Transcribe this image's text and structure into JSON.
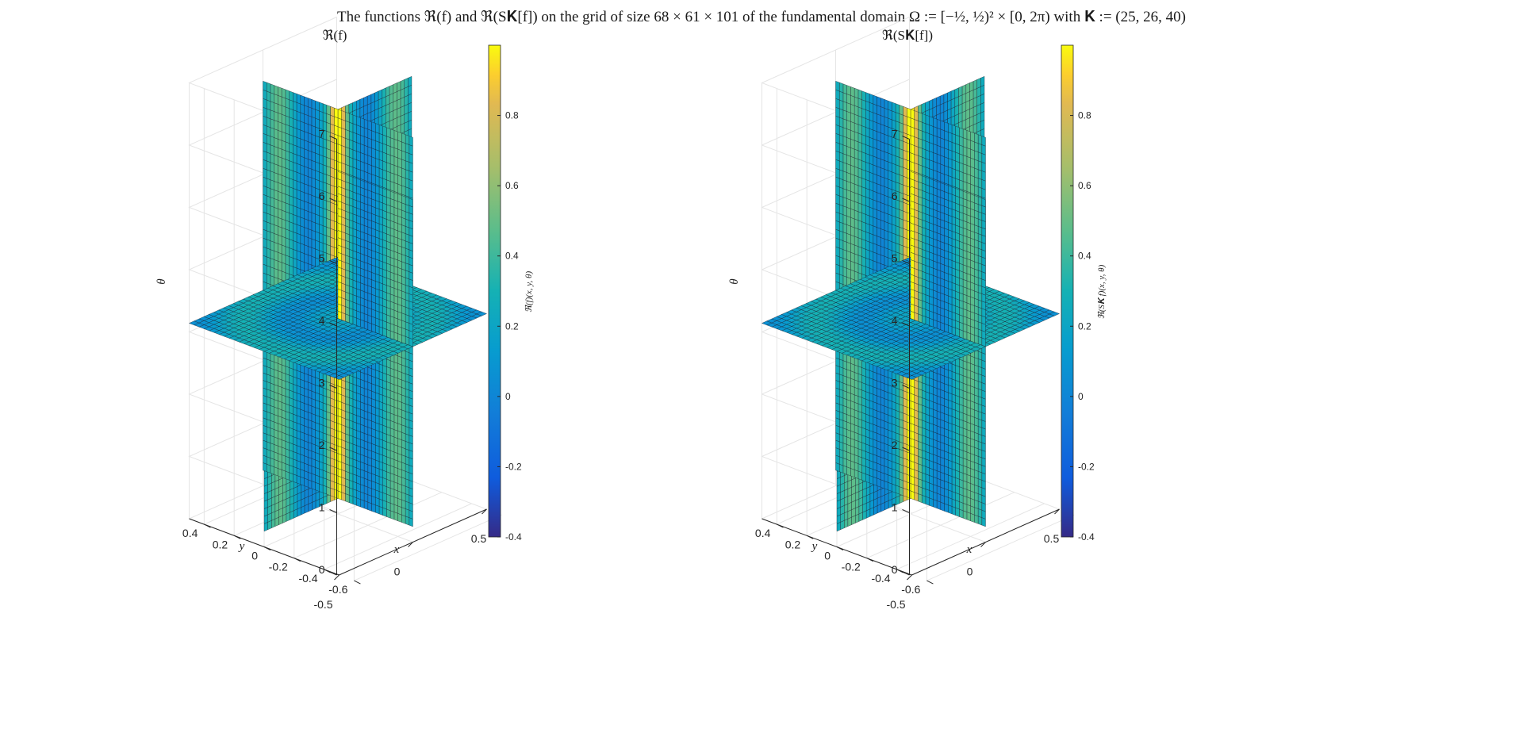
{
  "figure": {
    "suptitle": "The functions ℜ(f) and ℜ(S𝐊[f]) on the grid of size 68 × 61 × 101 of the fundamental domain Ω := [−½, ½)² × [0, 2π) with 𝐊 := (25, 26, 40)"
  },
  "chart_data": [
    {
      "type": "surface",
      "title": "ℜ(f)",
      "xlabel": "x",
      "ylabel": "y",
      "zlabel": "θ",
      "xlim": [
        -0.5,
        0.5
      ],
      "ylim": [
        -0.5,
        0.5
      ],
      "zlim": [
        0,
        7
      ],
      "x_ticks": [
        "-0.5",
        "0",
        "0.5"
      ],
      "y_ticks": [
        "0.4",
        "0.2",
        "0",
        "-0.2",
        "-0.4",
        "-0.6"
      ],
      "z_ticks": [
        "0",
        "1",
        "2",
        "3",
        "4",
        "5",
        "6",
        "7"
      ],
      "slices": {
        "x": 0,
        "y": 0,
        "theta": 3.14
      },
      "grid": true,
      "colormap": "parula",
      "colorbar": {
        "label": "ℜ(f)(x, y, θ)",
        "ticks": [
          "0.8",
          "0.6",
          "0.4",
          "0.2",
          "0",
          "-0.2",
          "-0.4"
        ],
        "range": [
          -0.4,
          1.0
        ]
      }
    },
    {
      "type": "surface",
      "title": "ℜ(S𝐊[f])",
      "xlabel": "x",
      "ylabel": "y",
      "zlabel": "θ",
      "xlim": [
        -0.5,
        0.5
      ],
      "ylim": [
        -0.5,
        0.5
      ],
      "zlim": [
        0,
        7
      ],
      "x_ticks": [
        "-0.5",
        "0",
        "0.5"
      ],
      "y_ticks": [
        "0.4",
        "0.2",
        "0",
        "-0.2",
        "-0.4",
        "-0.6"
      ],
      "z_ticks": [
        "0",
        "1",
        "2",
        "3",
        "4",
        "5",
        "6",
        "7"
      ],
      "slices": {
        "x": 0,
        "y": 0,
        "theta": 3.14
      },
      "grid": true,
      "colormap": "parula",
      "colorbar": {
        "label": "ℜ(S𝐊 f)(x, y, θ)",
        "ticks": [
          "0.8",
          "0.6",
          "0.4",
          "0.2",
          "0",
          "-0.2",
          "-0.4"
        ],
        "range": [
          -0.4,
          1.0
        ]
      }
    }
  ]
}
